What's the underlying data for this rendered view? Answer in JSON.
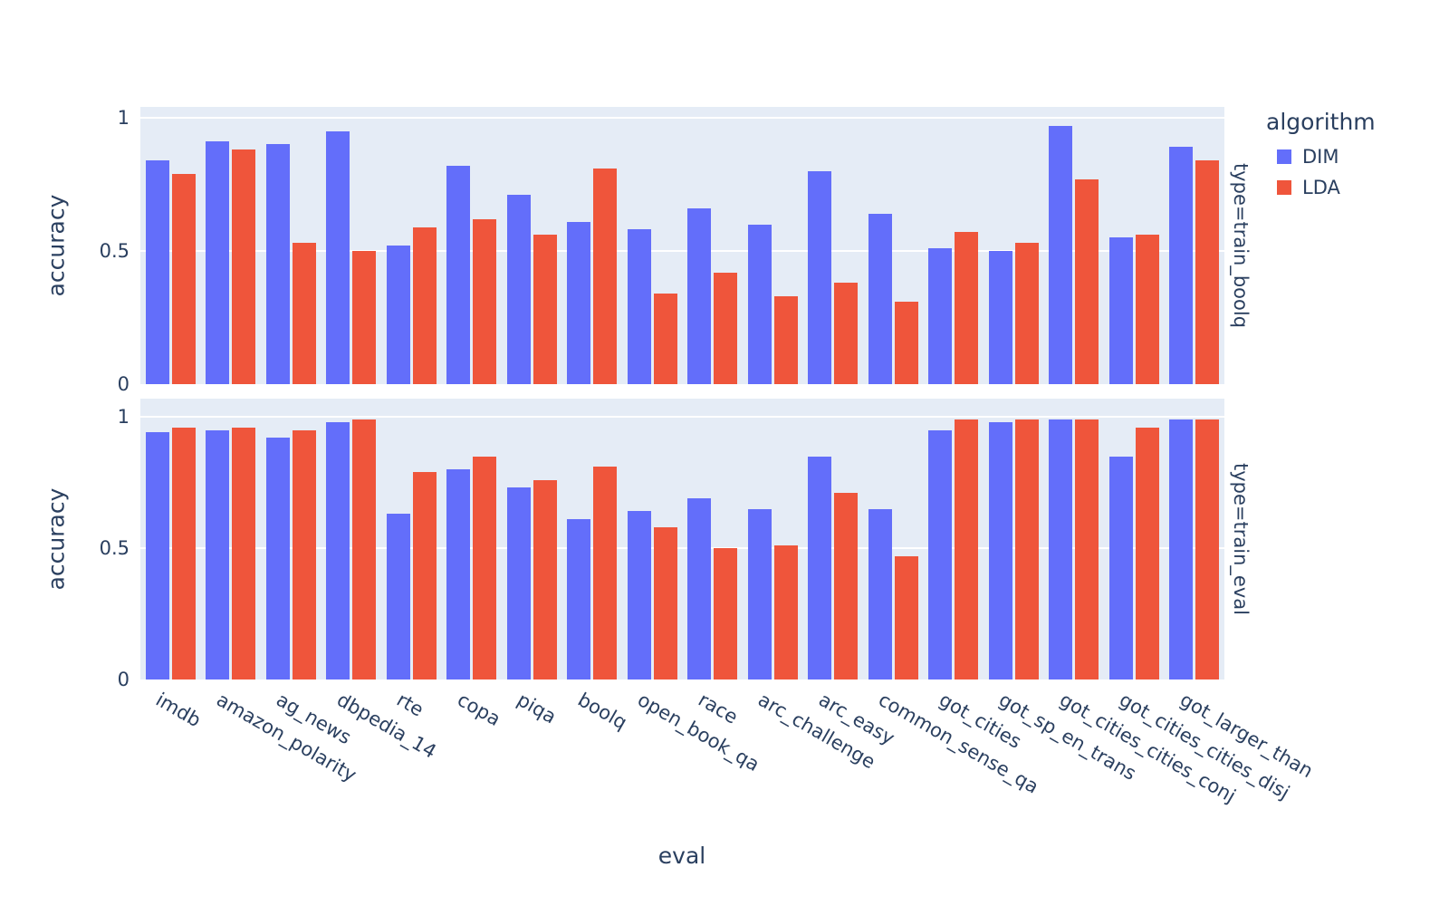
{
  "figure": {
    "xlabel": "eval",
    "ylabel": "accuracy",
    "legend": {
      "title": "algorithm",
      "items": [
        {
          "label": "DIM",
          "color": "#636EFA"
        },
        {
          "label": "LDA",
          "color": "#EF553B"
        }
      ]
    },
    "colors": {
      "plot_background": "#E5ECF6",
      "gridline": "#ffffff",
      "text": "#2a3f5f"
    }
  },
  "chart_data": {
    "type": "bar",
    "xlabel": "eval",
    "ylabel": "accuracy",
    "ylim": [
      0,
      1
    ],
    "yticks": [
      {
        "label": "0",
        "value": 0
      },
      {
        "label": "0.5",
        "value": 0.5
      },
      {
        "label": "1",
        "value": 1
      }
    ],
    "categories": [
      "imdb",
      "amazon_polarity",
      "ag_news",
      "dbpedia_14",
      "rte",
      "copa",
      "piqa",
      "boolq",
      "open_book_qa",
      "race",
      "arc_challenge",
      "arc_easy",
      "common_sense_qa",
      "got_cities",
      "got_sp_en_trans",
      "got_cities_cities_conj",
      "got_cities_cities_disj",
      "got_larger_than"
    ],
    "facets": [
      {
        "label": "type=train_boolq",
        "series": [
          {
            "name": "DIM",
            "color": "#636EFA",
            "values": [
              0.84,
              0.91,
              0.9,
              0.95,
              0.52,
              0.82,
              0.71,
              0.61,
              0.58,
              0.66,
              0.6,
              0.8,
              0.64,
              0.51,
              0.5,
              0.97,
              0.55,
              0.89
            ]
          },
          {
            "name": "LDA",
            "color": "#EF553B",
            "values": [
              0.79,
              0.88,
              0.53,
              0.5,
              0.59,
              0.62,
              0.56,
              0.81,
              0.34,
              0.42,
              0.33,
              0.38,
              0.31,
              0.57,
              0.53,
              0.77,
              0.56,
              0.84
            ]
          }
        ]
      },
      {
        "label": "type=train_eval",
        "series": [
          {
            "name": "DIM",
            "color": "#636EFA",
            "values": [
              0.94,
              0.95,
              0.92,
              0.98,
              0.63,
              0.8,
              0.73,
              0.61,
              0.64,
              0.69,
              0.65,
              0.85,
              0.65,
              0.95,
              0.98,
              0.99,
              0.85,
              0.99
            ]
          },
          {
            "name": "LDA",
            "color": "#EF553B",
            "values": [
              0.96,
              0.96,
              0.95,
              0.99,
              0.79,
              0.85,
              0.76,
              0.81,
              0.58,
              0.5,
              0.51,
              0.71,
              0.47,
              0.99,
              0.99,
              0.99,
              0.96,
              0.99
            ]
          }
        ]
      }
    ]
  }
}
